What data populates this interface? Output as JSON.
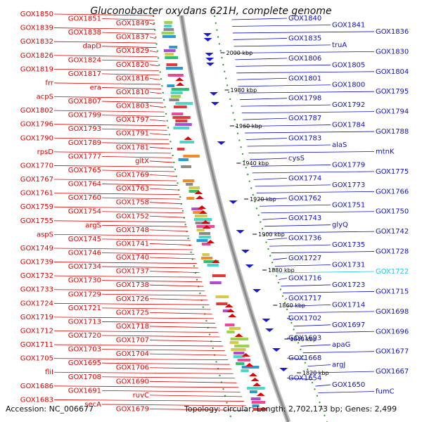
{
  "title": "Gluconobacter oxydans 621H, complete genome",
  "footer": {
    "accession": "Accession: NC_006677",
    "summary": "Topology: circular; Length: 2,702,173 bp; Genes: 2,499"
  },
  "colors": {
    "left_labels": "#e00000",
    "right_labels": "#1010c8",
    "highlight": "#22c8e6"
  },
  "kbp_ticks": [
    "2000 kbp",
    "1980 kbp",
    "1960 kbp",
    "1940 kbp",
    "1920 kbp",
    "1900 kbp",
    "1880 kbp",
    "1860 kbp",
    "1840 kbp",
    "1820 kbp"
  ],
  "left_genes": [
    "GOX1850",
    "GOX1851",
    "GOX1849",
    "GOX1839",
    "GOX1838",
    "GOX1837",
    "GOX1832",
    "dapD",
    "GOX1829",
    "GOX1826",
    "GOX1824",
    "GOX1820",
    "GOX1819",
    "GOX1817",
    "GOX1816",
    "frr",
    "era",
    "GOX1810",
    "acpS",
    "GOX1807",
    "GOX1803",
    "GOX1802",
    "GOX1799",
    "GOX1797",
    "GOX1796",
    "GOX1793",
    "GOX1791",
    "GOX1790",
    "GOX1789",
    "GOX1781",
    "rpsD",
    "GOX1777",
    "gltX",
    "GOX1770",
    "GOX1765",
    "GOX1769",
    "GOX1767",
    "GOX1764",
    "GOX1763",
    "GOX1761",
    "GOX1760",
    "GOX1758",
    "GOX1759",
    "GOX1754",
    "GOX1752",
    "GOX1755",
    "argS",
    "GOX1748",
    "aspS",
    "GOX1745",
    "GOX1741",
    "GOX1749",
    "GOX1746",
    "GOX1740",
    "GOX1739",
    "GOX1734",
    "GOX1737",
    "GOX1732",
    "GOX1730",
    "GOX1738",
    "GOX1733",
    "GOX1729",
    "GOX1726",
    "GOX1724",
    "GOX1721",
    "GOX1725",
    "GOX1719",
    "GOX1713",
    "GOX1718",
    "GOX1712",
    "GOX1720",
    "GOX1707",
    "GOX1711",
    "GOX1703",
    "GOX1704",
    "GOX1705",
    "GOX1695",
    "GOX1706",
    "fliI",
    "GOX1708",
    "GOX1690",
    "GOX1686",
    "GOX1691",
    "ruvC",
    "GOX1683",
    "secA",
    "GOX1679"
  ],
  "right_genes": [
    "GOX1840",
    "GOX1841",
    "GOX1836",
    "GOX1835",
    "truA",
    "GOX1830",
    "GOX1806",
    "GOX1805",
    "GOX1804",
    "GOX1801",
    "GOX1800",
    "GOX1795",
    "GOX1798",
    "GOX1792",
    "GOX1794",
    "GOX1787",
    "GOX1784",
    "GOX1788",
    "GOX1783",
    "alaS",
    "mtnK",
    "cysS",
    "GOX1779",
    "GOX1775",
    "GOX1774",
    "GOX1773",
    "GOX1766",
    "GOX1762",
    "GOX1751",
    "GOX1750",
    "GOX1743",
    "glyQ",
    "GOX1742",
    "GOX1736",
    "GOX1735",
    "GOX1728",
    "GOX1727",
    "GOX1731",
    "GOX1722",
    "GOX1716",
    "GOX1723",
    "GOX1715",
    "GOX1717",
    "GOX1714",
    "GOX1698",
    "GOX1702",
    "GOX1697",
    "GOX1696",
    "GOX1693",
    "apaG",
    "GOX1677",
    "GOX1668",
    "argJ",
    "GOX1667",
    "GOX1654",
    "GOX1650",
    "fumC"
  ]
}
